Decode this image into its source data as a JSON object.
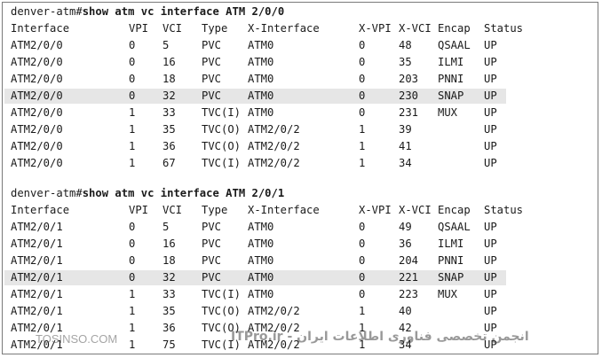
{
  "outputs": [
    {
      "prompt": "denver-atm#",
      "command": "show atm vc interface ATM 2/0/0",
      "headers": [
        "Interface",
        "VPI",
        "VCI",
        "Type",
        "X-Interface",
        "X-VPI",
        "X-VCI",
        "Encap",
        "Status"
      ],
      "rows": [
        [
          "ATM2/0/0",
          "0",
          "5",
          "PVC",
          "ATM0",
          "0",
          "48",
          "QSAAL",
          "UP"
        ],
        [
          "ATM2/0/0",
          "0",
          "16",
          "PVC",
          "ATM0",
          "0",
          "35",
          "ILMI",
          "UP"
        ],
        [
          "ATM2/0/0",
          "0",
          "18",
          "PVC",
          "ATM0",
          "0",
          "203",
          "PNNI",
          "UP"
        ],
        [
          "ATM2/0/0",
          "0",
          "32",
          "PVC",
          "ATM0",
          "0",
          "230",
          "SNAP",
          "UP"
        ],
        [
          "ATM2/0/0",
          "1",
          "33",
          "TVC(I)",
          "ATM0",
          "0",
          "231",
          "MUX",
          "UP"
        ],
        [
          "ATM2/0/0",
          "1",
          "35",
          "TVC(O)",
          "ATM2/0/2",
          "1",
          "39",
          "",
          "UP"
        ],
        [
          "ATM2/0/0",
          "1",
          "36",
          "TVC(O)",
          "ATM2/0/2",
          "1",
          "41",
          "",
          "UP"
        ],
        [
          "ATM2/0/0",
          "1",
          "67",
          "TVC(I)",
          "ATM2/0/2",
          "1",
          "34",
          "",
          "UP"
        ]
      ]
    },
    {
      "prompt": "denver-atm#",
      "command": "show atm vc interface ATM 2/0/1",
      "headers": [
        "Interface",
        "VPI",
        "VCI",
        "Type",
        "X-Interface",
        "X-VPI",
        "X-VCI",
        "Encap",
        "Status"
      ],
      "rows": [
        [
          "ATM2/0/1",
          "0",
          "5",
          "PVC",
          "ATM0",
          "0",
          "49",
          "QSAAL",
          "UP"
        ],
        [
          "ATM2/0/1",
          "0",
          "16",
          "PVC",
          "ATM0",
          "0",
          "36",
          "ILMI",
          "UP"
        ],
        [
          "ATM2/0/1",
          "0",
          "18",
          "PVC",
          "ATM0",
          "0",
          "204",
          "PNNI",
          "UP"
        ],
        [
          "ATM2/0/1",
          "0",
          "32",
          "PVC",
          "ATM0",
          "0",
          "221",
          "SNAP",
          "UP"
        ],
        [
          "ATM2/0/1",
          "1",
          "33",
          "TVC(I)",
          "ATM0",
          "0",
          "223",
          "MUX",
          "UP"
        ],
        [
          "ATM2/0/1",
          "1",
          "35",
          "TVC(O)",
          "ATM2/0/2",
          "1",
          "40",
          "",
          "UP"
        ],
        [
          "ATM2/0/1",
          "1",
          "36",
          "TVC(O)",
          "ATM2/0/2",
          "1",
          "42",
          "",
          "UP"
        ],
        [
          "ATM2/0/1",
          "1",
          "75",
          "TVC(I)",
          "ATM2/0/2",
          "1",
          "34",
          "",
          "UP"
        ]
      ]
    }
  ],
  "watermark": {
    "left_text": "TOSINSO.COM",
    "right_text": "انجمن تخصصی فناوری اطلاعات ایران - ITPro.ir"
  }
}
